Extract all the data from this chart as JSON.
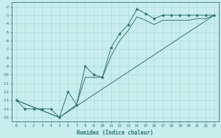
{
  "xlabel": "Humidex (Indice chaleur)",
  "background_color": "#c8eded",
  "line_color": "#2d6e6e",
  "grid_color": "#aad4d4",
  "xlim": [
    -0.5,
    23.5
  ],
  "ylim": [
    -15.5,
    -1.5
  ],
  "yticks": [
    -15,
    -14,
    -13,
    -12,
    -11,
    -10,
    -9,
    -8,
    -7,
    -6,
    -5,
    -4,
    -3,
    -2
  ],
  "xticks": [
    0,
    1,
    2,
    3,
    4,
    5,
    6,
    7,
    8,
    9,
    10,
    11,
    12,
    13,
    14,
    15,
    16,
    17,
    18,
    19,
    20,
    21,
    22,
    23
  ],
  "line1_x": [
    0,
    1,
    2,
    3,
    4,
    5,
    6,
    7,
    8,
    9,
    10,
    11,
    12,
    13,
    14,
    15,
    16,
    17,
    18,
    19,
    20,
    21,
    22,
    23
  ],
  "line1_y": [
    -13,
    -14,
    -14,
    -14,
    -14,
    -15,
    -12,
    -13.5,
    -9,
    -10,
    -10.3,
    -6.8,
    -5.2,
    -4.1,
    -2.3,
    -2.8,
    -3.4,
    -3.0,
    -3.0,
    -3.0,
    -3.0,
    -3.0,
    -3.0,
    -3.0
  ],
  "line2_x": [
    0,
    5,
    7,
    8,
    9,
    10,
    11,
    12,
    13,
    14,
    15,
    16,
    17,
    18,
    19,
    20,
    21,
    22,
    23
  ],
  "line2_y": [
    -13,
    -15,
    -13.5,
    -10.3,
    -10.3,
    -10.3,
    -7.8,
    -6.0,
    -4.8,
    -3.2,
    -3.6,
    -4.1,
    -3.6,
    -3.6,
    -3.6,
    -3.6,
    -3.4,
    -3.4,
    -3.0
  ],
  "line3_x": [
    0,
    5,
    23
  ],
  "line3_y": [
    -13,
    -15,
    -3.0
  ]
}
